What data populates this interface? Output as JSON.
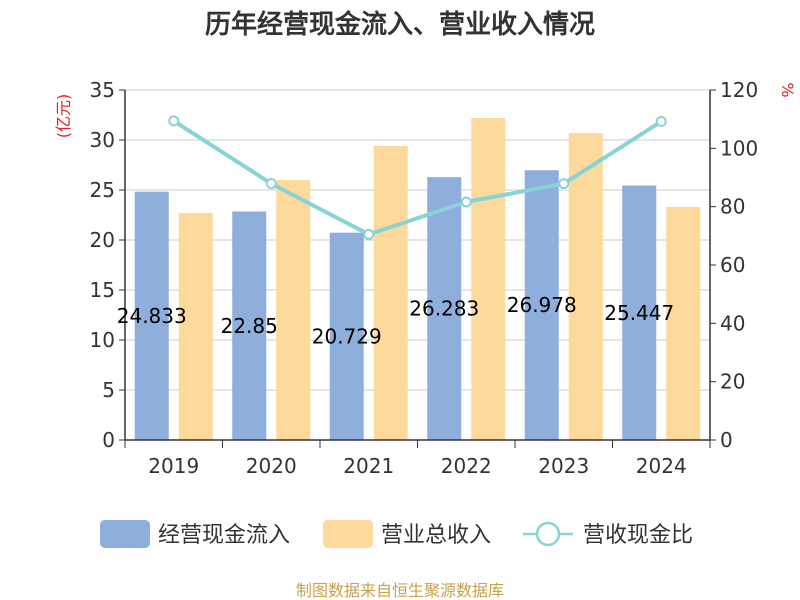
{
  "chart_data": {
    "type": "bar",
    "title": "历年经营现金流入、营业收入情况",
    "categories": [
      "2019",
      "2020",
      "2021",
      "2022",
      "2023",
      "2024"
    ],
    "left_axis": {
      "unit": "(亿元)",
      "min": 0,
      "max": 35,
      "ticks": [
        "0",
        "5",
        "10",
        "15",
        "20",
        "25",
        "30",
        "35"
      ]
    },
    "right_axis": {
      "unit": "%",
      "min": 0,
      "max": 120,
      "ticks": [
        "0",
        "20",
        "40",
        "60",
        "80",
        "100",
        "120"
      ]
    },
    "series": [
      {
        "name": "经营现金流入",
        "kind": "bar",
        "axis": "left",
        "color": "#8eaedb",
        "values": [
          24.833,
          22.85,
          20.729,
          26.283,
          26.978,
          25.447
        ],
        "labels": [
          "24.833",
          "22.85",
          "20.729",
          "26.283",
          "26.978",
          "25.447"
        ]
      },
      {
        "name": "营业总收入",
        "kind": "bar",
        "axis": "left",
        "color": "#fdd99b",
        "values": [
          22.7,
          26.0,
          29.4,
          32.2,
          30.7,
          23.3
        ]
      },
      {
        "name": "营收现金比",
        "kind": "line",
        "axis": "right",
        "color": "#88d3d5",
        "values": [
          109.4,
          87.9,
          70.5,
          81.6,
          87.9,
          109.2
        ]
      }
    ],
    "grid": true,
    "legend_position": "bottom"
  },
  "colors": {
    "unit_text": "#e02020",
    "source_text": "#c8a24a",
    "axis": "#333333",
    "grid": "#cccccc"
  },
  "source": "制图数据来自恒生聚源数据库"
}
